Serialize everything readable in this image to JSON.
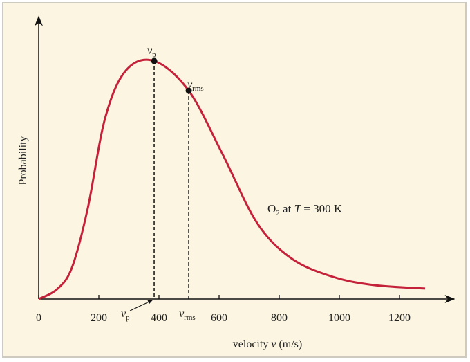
{
  "chart_data": {
    "type": "line",
    "xlabel": "velocity v (m/s)",
    "xlabel_parts": {
      "pre": "velocity ",
      "var": "v",
      "post": " (m/s)"
    },
    "ylabel": "Probability",
    "xlim": [
      0,
      1300
    ],
    "ylim": [
      0,
      1.0
    ],
    "x_ticks": [
      0,
      200,
      400,
      600,
      800,
      1000,
      1200
    ],
    "x_tick_labels": [
      "0",
      "200",
      "400",
      "600",
      "800",
      "1000",
      "1200"
    ],
    "grid": false,
    "series": [
      {
        "color": "#c4223a",
        "x": [
          0,
          60,
          110,
          163,
          221,
          290,
          384,
          499,
          611,
          726,
          841,
          979,
          1117,
          1285
        ],
        "y": [
          0,
          0.04,
          0.13,
          0.38,
          0.76,
          0.96,
          1.0,
          0.875,
          0.61,
          0.32,
          0.17,
          0.093,
          0.058,
          0.044
        ]
      }
    ],
    "markers": [
      {
        "label_var": "v",
        "label_sub": "p",
        "x": 384,
        "y": 1.0
      },
      {
        "label_var": "v",
        "label_sub": "rms",
        "x": 499,
        "y": 0.875
      }
    ],
    "annotation": {
      "pre": "O",
      "sub": "2",
      "mid": " at ",
      "var": "T",
      "post": " = 300 K"
    }
  }
}
